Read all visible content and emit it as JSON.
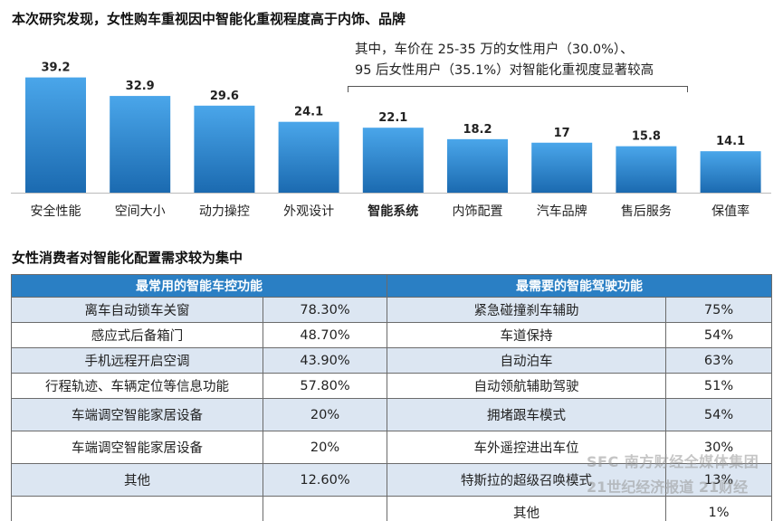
{
  "chart_title": "本次研究发现，女性购车重视因中智能化重视程度高于内饰、品牌",
  "callout": {
    "line1": "其中，车价在 25-35 万的女性用户（30.0%）、",
    "line2": "95 后女性用户（35.1%）对智能化重视度显著较高"
  },
  "chart_data": {
    "type": "bar",
    "title": "本次研究发现，女性购车重视因中智能化重视程度高于内饰、品牌",
    "categories": [
      "安全性能",
      "空间大小",
      "动力操控",
      "外观设计",
      "智能系统",
      "内饰配置",
      "汽车品牌",
      "售后服务",
      "保值率"
    ],
    "values": [
      39.2,
      32.9,
      29.6,
      24.1,
      22.1,
      18.2,
      17,
      15.8,
      14.1
    ],
    "value_labels": [
      "39.2",
      "32.9",
      "29.6",
      "24.1",
      "22.1",
      "18.2",
      "17",
      "15.8",
      "14.1"
    ],
    "highlighted_category": "智能系统",
    "ylim": [
      0,
      40
    ],
    "grid": false,
    "bar_color_top": "#4aa6ea",
    "bar_color_bottom": "#1b6ab0"
  },
  "table_title": "女性消费者对智能化配置需求较为集中",
  "table": {
    "left_header": "最常用的智能车控功能",
    "right_header": "最需要的智能驾驶功能",
    "header_color": "#2a7fc4",
    "rows": [
      {
        "left_name": "离车自动锁车关窗",
        "left_value": "78.30%",
        "right_name": "紧急碰撞刹车辅助",
        "right_value": "75%"
      },
      {
        "left_name": "感应式后备箱门",
        "left_value": "48.70%",
        "right_name": "车道保持",
        "right_value": "54%"
      },
      {
        "left_name": "手机远程开启空调",
        "left_value": "43.90%",
        "right_name": "自动泊车",
        "right_value": "63%"
      },
      {
        "left_name": "行程轨迹、车辆定位等信息功能",
        "left_value": "57.80%",
        "right_name": "自动领航辅助驾驶",
        "right_value": "51%"
      },
      {
        "left_name": "车端调空智能家居设备",
        "left_value": "20%",
        "right_name": "拥堵跟车模式",
        "right_value": "54%"
      },
      {
        "left_name": "车端调空智能家居设备",
        "left_value": "20%",
        "right_name": "车外遥控进出车位",
        "right_value": "30%"
      },
      {
        "left_name": "其他",
        "left_value": "12.60%",
        "right_name": "特斯拉的超级召唤模式",
        "right_value": "13%"
      },
      {
        "left_name": "",
        "left_value": "",
        "right_name": "其他",
        "right_value": "1%"
      }
    ]
  },
  "watermark": {
    "line1": "SFC 南方财经全媒体集团",
    "line2": "21世纪经济报道 21财经"
  }
}
